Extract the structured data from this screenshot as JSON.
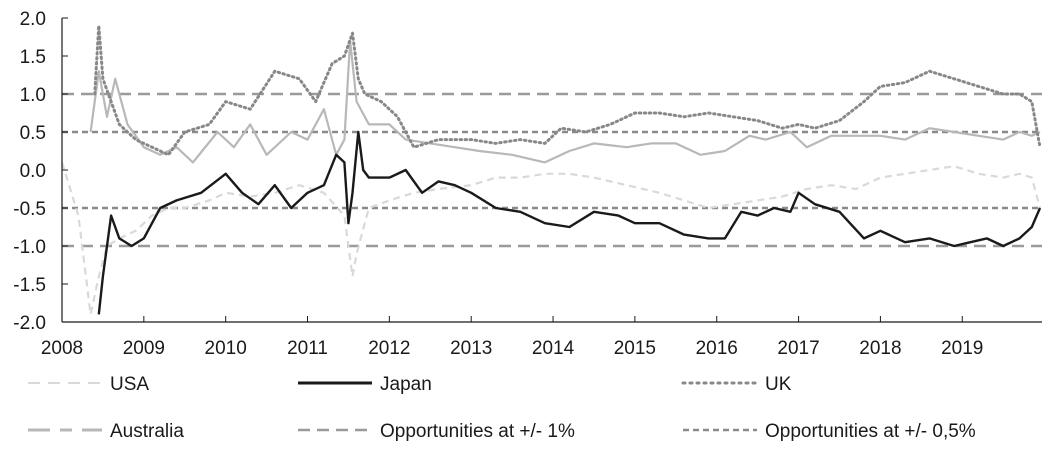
{
  "chart_data": {
    "type": "line",
    "title": "",
    "xlabel": "",
    "ylabel": "",
    "xlim": [
      2008.0,
      2019.95
    ],
    "ylim": [
      -2.0,
      2.0
    ],
    "yticks": [
      "2.0",
      "1.5",
      "1.0",
      "0.5",
      "0.0",
      "-0.5",
      "-1.0",
      "-1.5",
      "-2.0"
    ],
    "xticks": [
      "2008",
      "2009",
      "2010",
      "2011",
      "2012",
      "2013",
      "2014",
      "2015",
      "2016",
      "2017",
      "2018",
      "2019"
    ],
    "legend_position": "bottom",
    "grid": false,
    "reference_lines": [
      {
        "name": "Opportunities at +/- 1%",
        "values": [
          1.0,
          -1.0
        ],
        "color": "#9a9a9a"
      },
      {
        "name": "Opportunities at +/- 0,5%",
        "values": [
          0.5,
          -0.5
        ],
        "color": "#8a8a8a"
      }
    ],
    "series": [
      {
        "name": "USA",
        "color": "#d9d9d9",
        "style": "dashed",
        "x": [
          2008.0,
          2008.2,
          2008.35,
          2008.45,
          2008.55,
          2008.7,
          2008.9,
          2009.1,
          2009.3,
          2009.5,
          2009.8,
          2010.0,
          2010.3,
          2010.6,
          2010.9,
          2011.2,
          2011.45,
          2011.55,
          2011.6,
          2011.75,
          2012.0,
          2012.3,
          2012.6,
          2013.0,
          2013.3,
          2013.6,
          2013.9,
          2014.2,
          2014.5,
          2014.9,
          2015.3,
          2015.6,
          2015.9,
          2016.2,
          2016.5,
          2016.8,
          2017.1,
          2017.4,
          2017.7,
          2018.0,
          2018.3,
          2018.6,
          2018.9,
          2019.2,
          2019.5,
          2019.7,
          2019.85,
          2019.95
        ],
        "values": [
          0.1,
          -0.6,
          -1.9,
          -1.4,
          -1.0,
          -0.9,
          -0.8,
          -0.6,
          -0.5,
          -0.5,
          -0.4,
          -0.3,
          -0.35,
          -0.3,
          -0.2,
          -0.3,
          -0.6,
          -1.4,
          -1.1,
          -0.5,
          -0.4,
          -0.3,
          -0.25,
          -0.2,
          -0.1,
          -0.1,
          -0.05,
          -0.05,
          -0.1,
          -0.2,
          -0.3,
          -0.4,
          -0.5,
          -0.45,
          -0.4,
          -0.35,
          -0.25,
          -0.2,
          -0.25,
          -0.1,
          -0.05,
          0.0,
          0.05,
          -0.05,
          -0.1,
          -0.05,
          -0.1,
          -0.5
        ]
      },
      {
        "name": "Japan",
        "color": "#1a1a1a",
        "style": "solid",
        "x": [
          2008.45,
          2008.5,
          2008.55,
          2008.6,
          2008.7,
          2008.85,
          2009.0,
          2009.2,
          2009.4,
          2009.7,
          2010.0,
          2010.2,
          2010.4,
          2010.6,
          2010.8,
          2011.0,
          2011.2,
          2011.35,
          2011.45,
          2011.5,
          2011.55,
          2011.62,
          2011.68,
          2011.75,
          2012.0,
          2012.2,
          2012.4,
          2012.6,
          2012.8,
          2013.0,
          2013.3,
          2013.6,
          2013.9,
          2014.2,
          2014.5,
          2014.8,
          2015.0,
          2015.3,
          2015.6,
          2015.9,
          2016.1,
          2016.3,
          2016.5,
          2016.7,
          2016.9,
          2017.0,
          2017.2,
          2017.5,
          2017.8,
          2018.0,
          2018.3,
          2018.6,
          2018.9,
          2019.1,
          2019.3,
          2019.5,
          2019.7,
          2019.85,
          2019.95
        ],
        "values": [
          -1.9,
          -1.4,
          -1.0,
          -0.6,
          -0.9,
          -1.0,
          -0.9,
          -0.5,
          -0.4,
          -0.3,
          -0.05,
          -0.3,
          -0.45,
          -0.2,
          -0.5,
          -0.3,
          -0.2,
          0.2,
          0.1,
          -0.7,
          -0.3,
          0.5,
          0.0,
          -0.1,
          -0.1,
          0.0,
          -0.3,
          -0.15,
          -0.2,
          -0.3,
          -0.5,
          -0.55,
          -0.7,
          -0.75,
          -0.55,
          -0.6,
          -0.7,
          -0.7,
          -0.85,
          -0.9,
          -0.9,
          -0.55,
          -0.6,
          -0.5,
          -0.55,
          -0.3,
          -0.45,
          -0.55,
          -0.9,
          -0.8,
          -0.95,
          -0.9,
          -1.0,
          -0.95,
          -0.9,
          -1.0,
          -0.9,
          -0.75,
          -0.5
        ]
      },
      {
        "name": "UK",
        "color": "#888888",
        "style": "dotted",
        "x": [
          2008.4,
          2008.45,
          2008.5,
          2008.6,
          2008.7,
          2008.9,
          2009.1,
          2009.3,
          2009.5,
          2009.8,
          2010.0,
          2010.3,
          2010.6,
          2010.9,
          2011.1,
          2011.3,
          2011.45,
          2011.55,
          2011.62,
          2011.7,
          2011.9,
          2012.1,
          2012.3,
          2012.6,
          2013.0,
          2013.3,
          2013.6,
          2013.9,
          2014.1,
          2014.4,
          2014.7,
          2015.0,
          2015.3,
          2015.6,
          2015.9,
          2016.2,
          2016.5,
          2016.8,
          2017.0,
          2017.2,
          2017.5,
          2017.8,
          2018.0,
          2018.3,
          2018.6,
          2018.9,
          2019.2,
          2019.5,
          2019.7,
          2019.85,
          2019.95
        ],
        "values": [
          1.0,
          1.9,
          1.2,
          0.9,
          0.6,
          0.4,
          0.3,
          0.2,
          0.5,
          0.6,
          0.9,
          0.8,
          1.3,
          1.2,
          0.9,
          1.4,
          1.5,
          1.8,
          1.2,
          1.0,
          0.9,
          0.7,
          0.3,
          0.4,
          0.4,
          0.35,
          0.4,
          0.35,
          0.55,
          0.5,
          0.6,
          0.75,
          0.75,
          0.7,
          0.75,
          0.7,
          0.65,
          0.55,
          0.6,
          0.55,
          0.65,
          0.9,
          1.1,
          1.15,
          1.3,
          1.2,
          1.1,
          1.0,
          1.0,
          0.9,
          0.3
        ]
      },
      {
        "name": "Australia",
        "color": "#b8b8b8",
        "style": "long-dash",
        "x": [
          2008.35,
          2008.45,
          2008.55,
          2008.65,
          2008.8,
          2009.0,
          2009.2,
          2009.4,
          2009.6,
          2009.9,
          2010.1,
          2010.3,
          2010.5,
          2010.8,
          2011.0,
          2011.2,
          2011.35,
          2011.45,
          2011.52,
          2011.6,
          2011.75,
          2012.0,
          2012.2,
          2012.5,
          2012.8,
          2013.1,
          2013.5,
          2013.9,
          2014.2,
          2014.5,
          2014.9,
          2015.2,
          2015.5,
          2015.8,
          2016.1,
          2016.4,
          2016.6,
          2016.9,
          2017.1,
          2017.4,
          2017.7,
          2018.0,
          2018.3,
          2018.6,
          2018.9,
          2019.2,
          2019.5,
          2019.7,
          2019.85,
          2019.95
        ],
        "values": [
          0.5,
          1.3,
          0.7,
          1.2,
          0.6,
          0.3,
          0.2,
          0.3,
          0.1,
          0.5,
          0.3,
          0.6,
          0.2,
          0.5,
          0.4,
          0.8,
          0.2,
          0.4,
          1.7,
          0.9,
          0.6,
          0.6,
          0.4,
          0.35,
          0.3,
          0.25,
          0.2,
          0.1,
          0.25,
          0.35,
          0.3,
          0.35,
          0.35,
          0.2,
          0.25,
          0.45,
          0.4,
          0.5,
          0.3,
          0.45,
          0.45,
          0.45,
          0.4,
          0.55,
          0.5,
          0.45,
          0.4,
          0.5,
          0.45,
          0.5
        ]
      }
    ]
  },
  "legend": [
    {
      "label": "USA",
      "color": "#d9d9d9",
      "dash": "12 8",
      "width": 2
    },
    {
      "label": "Japan",
      "color": "#1a1a1a",
      "dash": "",
      "width": 3
    },
    {
      "label": "UK",
      "color": "#888888",
      "dash": "2 5",
      "width": 3
    },
    {
      "label": "Australia",
      "color": "#b8b8b8",
      "dash": "22 10 12 10",
      "width": 3
    },
    {
      "label": "Opportunities at +/- 1%",
      "color": "#9a9a9a",
      "dash": "12 7",
      "width": 2.5
    },
    {
      "label": "Opportunities at +/- 0,5%",
      "color": "#8a8a8a",
      "dash": "6 4",
      "width": 2.5
    }
  ]
}
